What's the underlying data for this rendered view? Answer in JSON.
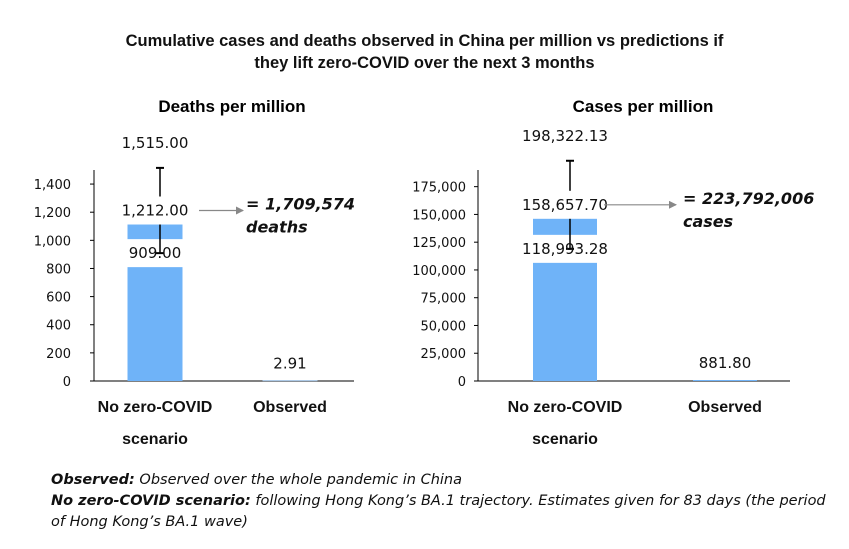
{
  "title_lines": [
    "Cumulative cases and deaths observed in China per million vs predictions if",
    "they lift zero-COVID over the next 3 months"
  ],
  "colors": {
    "bar": "#6fb3f8",
    "axis": "#000000",
    "arrow": "#888888"
  },
  "chart_data": [
    {
      "type": "bar",
      "title": "Deaths per million",
      "categories": [
        [
          "No zero-COVID",
          "scenario"
        ],
        [
          "Observed"
        ]
      ],
      "ylim": [
        0,
        1500
      ],
      "yticks": [
        0,
        200,
        400,
        600,
        800,
        1000,
        1200,
        1400
      ],
      "tick_labels": [
        "0",
        "200",
        "400",
        "600",
        "800",
        "1,000",
        "1,200",
        "1,400"
      ],
      "values": [
        1212.0,
        2.91
      ],
      "value_labels": [
        "1,212.00",
        "2.91"
      ],
      "error_low": 909.0,
      "error_high": 1515.0,
      "error_low_label": "909.00",
      "error_high_label": "1,515.00",
      "callout_lines": [
        "= 1,709,574",
        "deaths"
      ]
    },
    {
      "type": "bar",
      "title": "Cases per million",
      "categories": [
        [
          "No zero-COVID",
          "scenario"
        ],
        [
          "Observed"
        ]
      ],
      "ylim": [
        0,
        190000
      ],
      "yticks": [
        0,
        25000,
        50000,
        75000,
        100000,
        125000,
        150000,
        175000
      ],
      "tick_labels": [
        "0",
        "25,000",
        "50,000",
        "75,000",
        "100,000",
        "125,000",
        "150,000",
        "175,000"
      ],
      "values": [
        158657.7,
        881.8
      ],
      "value_labels": [
        "158,657.70",
        "881.80"
      ],
      "error_low": 118993.28,
      "error_high": 198322.13,
      "error_low_label": "118,993.28",
      "error_high_label": "198,322.13",
      "callout_lines": [
        "= 223,792,006",
        "cases"
      ]
    }
  ],
  "footnotes": [
    {
      "label": "Observed:",
      "text": " Observed over the whole pandemic in China"
    },
    {
      "label": "No zero-COVID scenario:",
      "text": " following Hong Kong’s BA.1 trajectory. Estimates given for 83 days (the period of Hong Kong’s BA.1 wave)"
    }
  ]
}
